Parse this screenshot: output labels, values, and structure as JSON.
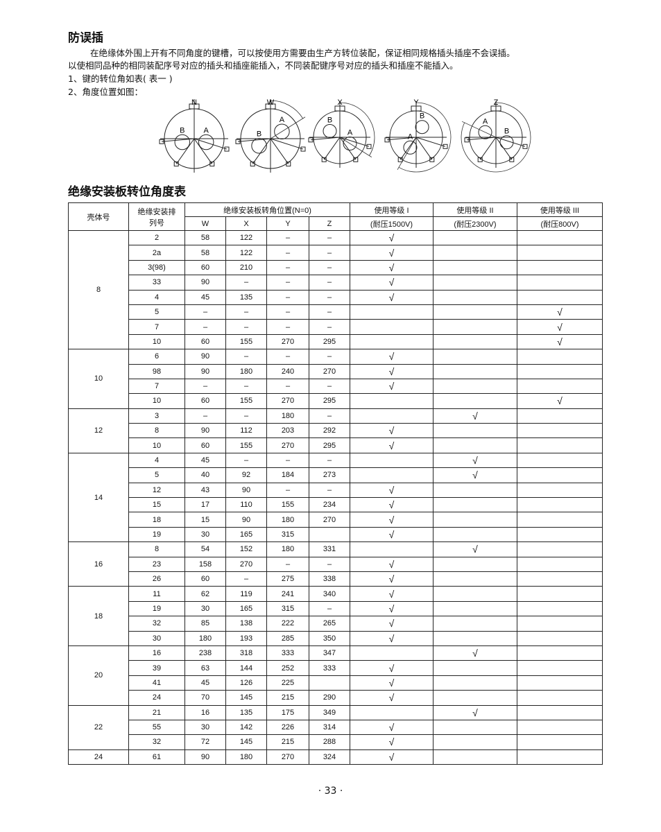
{
  "section_title": "防误插",
  "paragraph_1": "在绝缘体外围上开有不同角度的键槽，可以按使用方需要由生产方转位装配，保证相同规格插头插座不会误插。",
  "paragraph_2": "以使相同品种的相同装配序号对应的插头和插座能插入，不同装配键序号对应的插头和插座不能插入。",
  "item_1": "1、键的转位角如表( 表一 )",
  "item_2": "2、角度位置如图：",
  "diagrams": [
    {
      "label": "N",
      "a": "A",
      "b": "B"
    },
    {
      "label": "W",
      "a": "A",
      "b": "B"
    },
    {
      "label": "X",
      "a": "A",
      "b": "B"
    },
    {
      "label": "Y",
      "a": "A",
      "b": "B"
    },
    {
      "label": "Z",
      "a": "A",
      "b": "B"
    }
  ],
  "table_title": "绝缘安装板转位角度表",
  "table": {
    "headers": {
      "shell": "壳体号",
      "seq": "绝缘安装排列号",
      "position": "绝缘安装板转角位置(N=0)",
      "w": "W",
      "x": "X",
      "y": "Y",
      "z": "Z",
      "g1": "使用等级 I",
      "g1_sub": "(耐压1500V)",
      "g2": "使用等级 II",
      "g2_sub": "(耐压2300V)",
      "g3": "使用等级 III",
      "g3_sub": "(耐压800V)"
    },
    "groups": [
      {
        "shell": "8",
        "rows": [
          [
            "2",
            "58",
            "122",
            "–",
            "–",
            "√",
            "",
            ""
          ],
          [
            "2a",
            "58",
            "122",
            "–",
            "–",
            "√",
            "",
            ""
          ],
          [
            "3(98)",
            "60",
            "210",
            "–",
            "–",
            "√",
            "",
            ""
          ],
          [
            "33",
            "90",
            "–",
            "–",
            "–",
            "√",
            "",
            ""
          ],
          [
            "4",
            "45",
            "135",
            "–",
            "–",
            "√",
            "",
            ""
          ],
          [
            "5",
            "–",
            "–",
            "–",
            "–",
            "",
            "",
            "√"
          ],
          [
            "7",
            "–",
            "–",
            "–",
            "–",
            "",
            "",
            "√"
          ],
          [
            "10",
            "60",
            "155",
            "270",
            "295",
            "",
            "",
            "√"
          ]
        ]
      },
      {
        "shell": "10",
        "rows": [
          [
            "6",
            "90",
            "–",
            "–",
            "–",
            "√",
            "",
            ""
          ],
          [
            "98",
            "90",
            "180",
            "240",
            "270",
            "√",
            "",
            ""
          ],
          [
            "7",
            "–",
            "–",
            "–",
            "–",
            "√",
            "",
            ""
          ],
          [
            "10",
            "60",
            "155",
            "270",
            "295",
            "",
            "",
            "√"
          ]
        ]
      },
      {
        "shell": "12",
        "rows": [
          [
            "3",
            "–",
            "–",
            "180",
            "–",
            "",
            "√",
            ""
          ],
          [
            "8",
            "90",
            "112",
            "203",
            "292",
            "√",
            "",
            ""
          ],
          [
            "10",
            "60",
            "155",
            "270",
            "295",
            "√",
            "",
            ""
          ]
        ]
      },
      {
        "shell": "14",
        "rows": [
          [
            "4",
            "45",
            "–",
            "–",
            "–",
            "",
            "√",
            ""
          ],
          [
            "5",
            "40",
            "92",
            "184",
            "273",
            "",
            "√",
            ""
          ],
          [
            "12",
            "43",
            "90",
            "–",
            "–",
            "√",
            "",
            ""
          ],
          [
            "15",
            "17",
            "110",
            "155",
            "234",
            "√",
            "",
            ""
          ],
          [
            "18",
            "15",
            "90",
            "180",
            "270",
            "√",
            "",
            ""
          ],
          [
            "19",
            "30",
            "165",
            "315",
            "",
            "√",
            "",
            ""
          ]
        ]
      },
      {
        "shell": "16",
        "rows": [
          [
            "8",
            "54",
            "152",
            "180",
            "331",
            "",
            "√",
            ""
          ],
          [
            "23",
            "158",
            "270",
            "–",
            "–",
            "√",
            "",
            ""
          ],
          [
            "26",
            "60",
            "–",
            "275",
            "338",
            "√",
            "",
            ""
          ]
        ]
      },
      {
        "shell": "18",
        "rows": [
          [
            "11",
            "62",
            "119",
            "241",
            "340",
            "√",
            "",
            ""
          ],
          [
            "19",
            "30",
            "165",
            "315",
            "–",
            "√",
            "",
            ""
          ],
          [
            "32",
            "85",
            "138",
            "222",
            "265",
            "√",
            "",
            ""
          ],
          [
            "30",
            "180",
            "193",
            "285",
            "350",
            "√",
            "",
            ""
          ]
        ]
      },
      {
        "shell": "20",
        "rows": [
          [
            "16",
            "238",
            "318",
            "333",
            "347",
            "",
            "√",
            ""
          ],
          [
            "39",
            "63",
            "144",
            "252",
            "333",
            "√",
            "",
            ""
          ],
          [
            "41",
            "45",
            "126",
            "225",
            "",
            "√",
            "",
            ""
          ],
          [
            "24",
            "70",
            "145",
            "215",
            "290",
            "√",
            "",
            ""
          ]
        ]
      },
      {
        "shell": "22",
        "rows": [
          [
            "21",
            "16",
            "135",
            "175",
            "349",
            "",
            "√",
            ""
          ],
          [
            "55",
            "30",
            "142",
            "226",
            "314",
            "√",
            "",
            ""
          ],
          [
            "32",
            "72",
            "145",
            "215",
            "288",
            "√",
            "",
            ""
          ]
        ]
      },
      {
        "shell": "24",
        "rows": [
          [
            "61",
            "90",
            "180",
            "270",
            "324",
            "√",
            "",
            ""
          ]
        ]
      }
    ]
  },
  "page_number": "· 33 ·"
}
